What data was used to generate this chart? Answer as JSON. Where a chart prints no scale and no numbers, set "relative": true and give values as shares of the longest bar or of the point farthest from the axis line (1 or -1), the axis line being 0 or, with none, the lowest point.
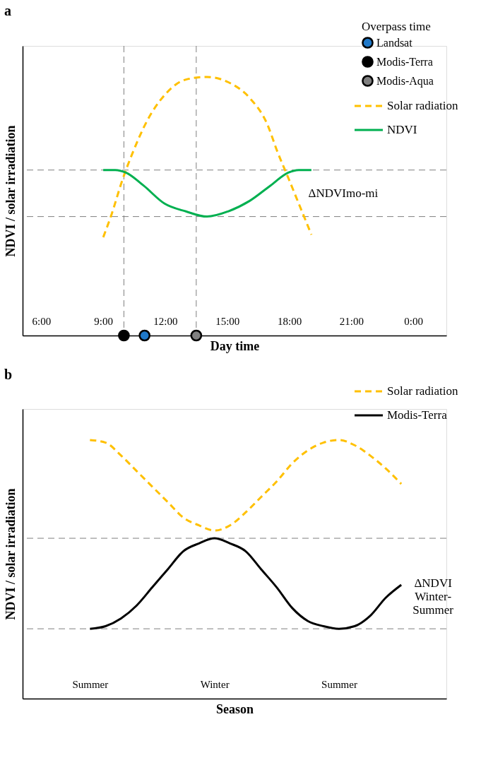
{
  "chart_data": [
    {
      "type": "line",
      "title": "a",
      "xlabel": "Day time",
      "ylabel": "NDVI / solar irradiation",
      "relative": true,
      "legend_title": "Overpass time",
      "legend": "top right",
      "grid": false,
      "xlim": [
        5.1,
        25.6
      ],
      "xticks": [
        {
          "value": 6,
          "label": "6:00"
        },
        {
          "value": 9,
          "label": "9:00"
        },
        {
          "value": 12,
          "label": "12:00"
        },
        {
          "value": 15,
          "label": "15:00"
        },
        {
          "value": 18,
          "label": "18:00"
        },
        {
          "value": 21,
          "label": "21:00"
        },
        {
          "value": 24,
          "label": "0:00"
        }
      ],
      "series": [
        {
          "name": "Landsat",
          "type": "scatter",
          "marker": "circle",
          "color": "#1f78c8",
          "x": [
            11.0
          ],
          "values": [
            0
          ]
        },
        {
          "name": "Modis-Terra",
          "type": "scatter",
          "marker": "circle",
          "color": "#000000",
          "x": [
            10.0
          ],
          "values": [
            0
          ]
        },
        {
          "name": "Modis-Aqua",
          "type": "scatter",
          "marker": "circle",
          "color": "#808080",
          "x": [
            13.5
          ],
          "values": [
            0
          ]
        },
        {
          "name": "Solar radiation",
          "type": "line",
          "line_style": "dashed",
          "color": "#ffc000",
          "x": [
            9.0,
            9.41,
            9.92,
            10.44,
            11.12,
            11.97,
            13.0,
            14.02,
            15.04,
            16.07,
            16.92,
            17.43,
            17.95,
            18.46,
            19.07
          ],
          "values": [
            0.38,
            0.47,
            0.6,
            0.71,
            0.83,
            0.93,
            0.99,
            1.0,
            0.98,
            0.92,
            0.82,
            0.71,
            0.61,
            0.51,
            0.39
          ]
        },
        {
          "name": "NDVI",
          "type": "line",
          "line_style": "solid",
          "color": "#00b050",
          "x": [
            9.0,
            9.58,
            10.1,
            10.95,
            11.97,
            13.0,
            14.02,
            15.04,
            16.07,
            17.09,
            17.95,
            18.46,
            19.07
          ],
          "values": [
            0.64,
            0.64,
            0.63,
            0.58,
            0.51,
            0.48,
            0.46,
            0.48,
            0.52,
            0.58,
            0.63,
            0.64,
            0.64
          ]
        }
      ],
      "ref_lines": [
        {
          "axis": "y",
          "value": 0.64,
          "color": "#7f7f7f",
          "line_style": "dashed"
        },
        {
          "axis": "y",
          "value": 0.46,
          "color": "#7f7f7f",
          "line_style": "dashed"
        },
        {
          "axis": "x",
          "value": 10.0,
          "color": "#7f7f7f",
          "line_style": "dashed"
        },
        {
          "axis": "x",
          "value": 13.5,
          "color": "#7f7f7f",
          "line_style": "dashed"
        }
      ],
      "annotations": [
        "ΔNDVImo-mi"
      ]
    },
    {
      "type": "line",
      "title": "b",
      "xlabel": "Season",
      "ylabel": "NDVI / solar irradiation",
      "relative": true,
      "legend": "top right",
      "grid": false,
      "categories": [
        "Summer",
        null,
        null,
        null,
        null,
        null,
        null,
        null,
        "Winter",
        null,
        null,
        null,
        null,
        null,
        null,
        null,
        "Summer",
        null,
        null,
        null,
        null
      ],
      "series": [
        {
          "name": "Solar radiation",
          "line_style": "dashed",
          "color": "#ffc000",
          "values": [
            1.0,
            0.99,
            0.94,
            0.88,
            0.82,
            0.76,
            0.7,
            0.67,
            0.65,
            0.67,
            0.72,
            0.78,
            0.84,
            0.91,
            0.96,
            0.99,
            1.0,
            0.98,
            0.94,
            0.89,
            0.83
          ]
        },
        {
          "name": "Modis-Terra",
          "line_style": "solid",
          "color": "#000000",
          "values": [
            0.27,
            0.28,
            0.31,
            0.36,
            0.43,
            0.5,
            0.57,
            0.6,
            0.62,
            0.6,
            0.57,
            0.5,
            0.43,
            0.35,
            0.3,
            0.28,
            0.27,
            0.28,
            0.32,
            0.39,
            0.44
          ]
        }
      ],
      "ref_lines": [
        {
          "axis": "y",
          "value": 0.62,
          "color": "#7f7f7f",
          "line_style": "dashed"
        },
        {
          "axis": "y",
          "value": 0.27,
          "color": "#7f7f7f",
          "line_style": "dashed"
        }
      ],
      "annotations": [
        "ΔNDVI\nWinter-\nSummer"
      ]
    }
  ]
}
